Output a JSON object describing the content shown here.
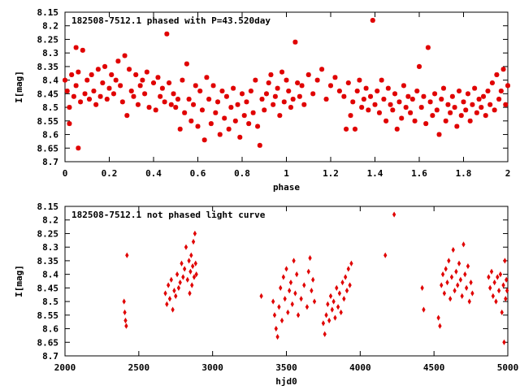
{
  "chart_data": [
    {
      "type": "scatter",
      "title": "182508-7512.1 phased with P=43.520day",
      "xlabel": "phase",
      "ylabel": "I[mag]",
      "xlim": [
        0,
        2
      ],
      "ylim": [
        8.15,
        8.7
      ],
      "y_reversed": true,
      "grid": false,
      "legend": "none",
      "x_ticks": [
        "0",
        "0.2",
        "0.4",
        "0.6",
        "0.8",
        "1",
        "1.2",
        "1.4",
        "1.6",
        "1.8",
        "2"
      ],
      "x_tick_values": [
        0,
        0.2,
        0.4,
        0.6,
        0.8,
        1,
        1.2,
        1.4,
        1.6,
        1.8,
        2
      ],
      "y_ticks": [
        "8.15",
        "8.2",
        "8.25",
        "8.3",
        "8.35",
        "8.4",
        "8.45",
        "8.5",
        "8.55",
        "8.6",
        "8.65",
        "8.7"
      ],
      "y_tick_values": [
        8.15,
        8.2,
        8.25,
        8.3,
        8.35,
        8.4,
        8.45,
        8.5,
        8.55,
        8.6,
        8.65,
        8.7
      ],
      "marker": "star",
      "series_color": "#e00000",
      "points": [
        [
          0.0,
          8.4
        ],
        [
          0.01,
          8.44
        ],
        [
          0.02,
          8.5
        ],
        [
          0.02,
          8.56
        ],
        [
          0.03,
          8.38
        ],
        [
          0.04,
          8.46
        ],
        [
          0.05,
          8.28
        ],
        [
          0.05,
          8.42
        ],
        [
          0.06,
          8.65
        ],
        [
          0.06,
          8.37
        ],
        [
          0.07,
          8.48
        ],
        [
          0.08,
          8.29
        ],
        [
          0.09,
          8.45
        ],
        [
          0.1,
          8.4
        ],
        [
          0.11,
          8.47
        ],
        [
          0.12,
          8.38
        ],
        [
          0.13,
          8.44
        ],
        [
          0.14,
          8.49
        ],
        [
          0.15,
          8.36
        ],
        [
          0.16,
          8.46
        ],
        [
          0.17,
          8.41
        ],
        [
          0.18,
          8.35
        ],
        [
          0.19,
          8.47
        ],
        [
          0.2,
          8.43
        ],
        [
          0.21,
          8.38
        ],
        [
          0.22,
          8.45
        ],
        [
          0.23,
          8.4
        ],
        [
          0.24,
          8.33
        ],
        [
          0.25,
          8.42
        ],
        [
          0.26,
          8.48
        ],
        [
          0.27,
          8.31
        ],
        [
          0.28,
          8.53
        ],
        [
          0.29,
          8.36
        ],
        [
          0.3,
          8.44
        ],
        [
          0.31,
          8.46
        ],
        [
          0.32,
          8.38
        ],
        [
          0.33,
          8.49
        ],
        [
          0.34,
          8.42
        ],
        [
          0.35,
          8.4
        ],
        [
          0.36,
          8.45
        ],
        [
          0.37,
          8.37
        ],
        [
          0.38,
          8.5
        ],
        [
          0.4,
          8.41
        ],
        [
          0.41,
          8.51
        ],
        [
          0.42,
          8.39
        ],
        [
          0.43,
          8.46
        ],
        [
          0.44,
          8.43
        ],
        [
          0.45,
          8.48
        ],
        [
          0.46,
          8.23
        ],
        [
          0.47,
          8.41
        ],
        [
          0.48,
          8.49
        ],
        [
          0.49,
          8.45
        ],
        [
          0.5,
          8.5
        ],
        [
          0.51,
          8.47
        ],
        [
          0.52,
          8.58
        ],
        [
          0.53,
          8.4
        ],
        [
          0.54,
          8.52
        ],
        [
          0.55,
          8.34
        ],
        [
          0.56,
          8.47
        ],
        [
          0.57,
          8.55
        ],
        [
          0.58,
          8.49
        ],
        [
          0.59,
          8.42
        ],
        [
          0.6,
          8.57
        ],
        [
          0.61,
          8.44
        ],
        [
          0.62,
          8.51
        ],
        [
          0.63,
          8.62
        ],
        [
          0.64,
          8.39
        ],
        [
          0.65,
          8.47
        ],
        [
          0.66,
          8.56
        ],
        [
          0.67,
          8.42
        ],
        [
          0.68,
          8.52
        ],
        [
          0.69,
          8.48
        ],
        [
          0.7,
          8.6
        ],
        [
          0.71,
          8.44
        ],
        [
          0.72,
          8.54
        ],
        [
          0.73,
          8.46
        ],
        [
          0.74,
          8.58
        ],
        [
          0.75,
          8.5
        ],
        [
          0.76,
          8.43
        ],
        [
          0.77,
          8.55
        ],
        [
          0.78,
          8.49
        ],
        [
          0.79,
          8.61
        ],
        [
          0.8,
          8.45
        ],
        [
          0.81,
          8.53
        ],
        [
          0.82,
          8.48
        ],
        [
          0.83,
          8.56
        ],
        [
          0.84,
          8.44
        ],
        [
          0.85,
          8.52
        ],
        [
          0.86,
          8.4
        ],
        [
          0.87,
          8.57
        ],
        [
          0.88,
          8.64
        ],
        [
          0.89,
          8.47
        ],
        [
          0.9,
          8.51
        ],
        [
          0.91,
          8.45
        ],
        [
          0.92,
          8.41
        ],
        [
          0.93,
          8.38
        ],
        [
          0.94,
          8.49
        ],
        [
          0.95,
          8.46
        ],
        [
          0.96,
          8.43
        ],
        [
          0.97,
          8.53
        ],
        [
          0.98,
          8.37
        ],
        [
          0.99,
          8.48
        ],
        [
          1.0,
          8.4
        ],
        [
          1.01,
          8.44
        ],
        [
          1.02,
          8.5
        ],
        [
          1.03,
          8.47
        ],
        [
          1.04,
          8.26
        ],
        [
          1.05,
          8.41
        ],
        [
          1.06,
          8.46
        ],
        [
          1.07,
          8.42
        ],
        [
          1.08,
          8.49
        ],
        [
          1.1,
          8.38
        ],
        [
          1.12,
          8.45
        ],
        [
          1.14,
          8.4
        ],
        [
          1.16,
          8.36
        ],
        [
          1.18,
          8.47
        ],
        [
          1.2,
          8.42
        ],
        [
          1.22,
          8.39
        ],
        [
          1.24,
          8.44
        ],
        [
          1.26,
          8.46
        ],
        [
          1.27,
          8.58
        ],
        [
          1.28,
          8.41
        ],
        [
          1.29,
          8.53
        ],
        [
          1.3,
          8.48
        ],
        [
          1.31,
          8.58
        ],
        [
          1.32,
          8.44
        ],
        [
          1.33,
          8.4
        ],
        [
          1.34,
          8.5
        ],
        [
          1.35,
          8.47
        ],
        [
          1.36,
          8.43
        ],
        [
          1.37,
          8.51
        ],
        [
          1.38,
          8.46
        ],
        [
          1.39,
          8.18
        ],
        [
          1.4,
          8.49
        ],
        [
          1.41,
          8.44
        ],
        [
          1.42,
          8.52
        ],
        [
          1.43,
          8.4
        ],
        [
          1.44,
          8.47
        ],
        [
          1.45,
          8.55
        ],
        [
          1.46,
          8.43
        ],
        [
          1.47,
          8.49
        ],
        [
          1.48,
          8.51
        ],
        [
          1.49,
          8.45
        ],
        [
          1.5,
          8.58
        ],
        [
          1.51,
          8.48
        ],
        [
          1.52,
          8.54
        ],
        [
          1.53,
          8.42
        ],
        [
          1.54,
          8.5
        ],
        [
          1.55,
          8.46
        ],
        [
          1.56,
          8.52
        ],
        [
          1.57,
          8.47
        ],
        [
          1.58,
          8.55
        ],
        [
          1.59,
          8.44
        ],
        [
          1.6,
          8.35
        ],
        [
          1.61,
          8.5
        ],
        [
          1.62,
          8.46
        ],
        [
          1.63,
          8.56
        ],
        [
          1.64,
          8.28
        ],
        [
          1.65,
          8.48
        ],
        [
          1.66,
          8.53
        ],
        [
          1.67,
          8.45
        ],
        [
          1.68,
          8.51
        ],
        [
          1.69,
          8.6
        ],
        [
          1.7,
          8.47
        ],
        [
          1.71,
          8.43
        ],
        [
          1.72,
          8.55
        ],
        [
          1.73,
          8.49
        ],
        [
          1.74,
          8.52
        ],
        [
          1.75,
          8.46
        ],
        [
          1.76,
          8.5
        ],
        [
          1.77,
          8.57
        ],
        [
          1.78,
          8.44
        ],
        [
          1.79,
          8.53
        ],
        [
          1.8,
          8.48
        ],
        [
          1.81,
          8.51
        ],
        [
          1.82,
          8.45
        ],
        [
          1.83,
          8.55
        ],
        [
          1.84,
          8.49
        ],
        [
          1.85,
          8.43
        ],
        [
          1.86,
          8.52
        ],
        [
          1.87,
          8.47
        ],
        [
          1.88,
          8.5
        ],
        [
          1.89,
          8.46
        ],
        [
          1.9,
          8.53
        ],
        [
          1.91,
          8.44
        ],
        [
          1.92,
          8.49
        ],
        [
          1.93,
          8.41
        ],
        [
          1.94,
          8.51
        ],
        [
          1.95,
          8.38
        ],
        [
          1.96,
          8.47
        ],
        [
          1.97,
          8.44
        ],
        [
          1.98,
          8.36
        ],
        [
          1.99,
          8.49
        ],
        [
          2.0,
          8.42
        ]
      ]
    },
    {
      "type": "scatter",
      "title": "182508-7512.1 not phased light curve",
      "xlabel": "hjd0",
      "ylabel": "I[mag]",
      "xlim": [
        2000,
        5000
      ],
      "ylim": [
        8.15,
        8.7
      ],
      "y_reversed": true,
      "grid": false,
      "legend": "none",
      "x_ticks": [
        "2000",
        "2500",
        "3000",
        "3500",
        "4000",
        "4500",
        "5000"
      ],
      "x_tick_values": [
        2000,
        2500,
        3000,
        3500,
        4000,
        4500,
        5000
      ],
      "y_ticks": [
        "8.15",
        "8.2",
        "8.25",
        "8.3",
        "8.35",
        "8.4",
        "8.45",
        "8.5",
        "8.55",
        "8.6",
        "8.65",
        "8.7"
      ],
      "y_tick_values": [
        8.15,
        8.2,
        8.25,
        8.3,
        8.35,
        8.4,
        8.45,
        8.5,
        8.55,
        8.6,
        8.65,
        8.7
      ],
      "marker": "diamond",
      "series_color": "#e00000",
      "points": [
        [
          2400,
          8.5
        ],
        [
          2405,
          8.54
        ],
        [
          2410,
          8.57
        ],
        [
          2415,
          8.59
        ],
        [
          2420,
          8.33
        ],
        [
          2680,
          8.47
        ],
        [
          2690,
          8.51
        ],
        [
          2700,
          8.44
        ],
        [
          2710,
          8.49
        ],
        [
          2720,
          8.42
        ],
        [
          2730,
          8.53
        ],
        [
          2740,
          8.46
        ],
        [
          2750,
          8.48
        ],
        [
          2760,
          8.4
        ],
        [
          2770,
          8.45
        ],
        [
          2780,
          8.43
        ],
        [
          2790,
          8.36
        ],
        [
          2800,
          8.41
        ],
        [
          2810,
          8.38
        ],
        [
          2820,
          8.3
        ],
        [
          2830,
          8.42
        ],
        [
          2840,
          8.35
        ],
        [
          2845,
          8.47
        ],
        [
          2850,
          8.39
        ],
        [
          2855,
          8.33
        ],
        [
          2860,
          8.44
        ],
        [
          2865,
          8.37
        ],
        [
          2870,
          8.28
        ],
        [
          2875,
          8.41
        ],
        [
          2880,
          8.25
        ],
        [
          2885,
          8.36
        ],
        [
          2890,
          8.4
        ],
        [
          3330,
          8.48
        ],
        [
          3410,
          8.5
        ],
        [
          3420,
          8.55
        ],
        [
          3430,
          8.6
        ],
        [
          3440,
          8.63
        ],
        [
          3450,
          8.52
        ],
        [
          3460,
          8.45
        ],
        [
          3470,
          8.57
        ],
        [
          3480,
          8.41
        ],
        [
          3490,
          8.49
        ],
        [
          3500,
          8.38
        ],
        [
          3510,
          8.54
        ],
        [
          3520,
          8.46
        ],
        [
          3530,
          8.43
        ],
        [
          3540,
          8.51
        ],
        [
          3550,
          8.35
        ],
        [
          3560,
          8.47
        ],
        [
          3570,
          8.4
        ],
        [
          3580,
          8.55
        ],
        [
          3600,
          8.49
        ],
        [
          3620,
          8.44
        ],
        [
          3640,
          8.52
        ],
        [
          3650,
          8.39
        ],
        [
          3660,
          8.34
        ],
        [
          3670,
          8.46
        ],
        [
          3680,
          8.42
        ],
        [
          3690,
          8.5
        ],
        [
          3750,
          8.58
        ],
        [
          3760,
          8.62
        ],
        [
          3770,
          8.55
        ],
        [
          3780,
          8.51
        ],
        [
          3790,
          8.57
        ],
        [
          3800,
          8.48
        ],
        [
          3810,
          8.53
        ],
        [
          3820,
          8.5
        ],
        [
          3830,
          8.56
        ],
        [
          3840,
          8.45
        ],
        [
          3850,
          8.52
        ],
        [
          3860,
          8.47
        ],
        [
          3870,
          8.54
        ],
        [
          3880,
          8.43
        ],
        [
          3890,
          8.49
        ],
        [
          3900,
          8.41
        ],
        [
          3910,
          8.46
        ],
        [
          3920,
          8.38
        ],
        [
          3930,
          8.44
        ],
        [
          3940,
          8.36
        ],
        [
          4170,
          8.33
        ],
        [
          4230,
          8.18
        ],
        [
          4420,
          8.45
        ],
        [
          4430,
          8.53
        ],
        [
          4530,
          8.56
        ],
        [
          4540,
          8.59
        ],
        [
          4550,
          8.44
        ],
        [
          4560,
          8.4
        ],
        [
          4570,
          8.47
        ],
        [
          4580,
          8.38
        ],
        [
          4590,
          8.43
        ],
        [
          4600,
          8.35
        ],
        [
          4610,
          8.49
        ],
        [
          4620,
          8.41
        ],
        [
          4630,
          8.31
        ],
        [
          4640,
          8.46
        ],
        [
          4650,
          8.39
        ],
        [
          4660,
          8.44
        ],
        [
          4670,
          8.36
        ],
        [
          4680,
          8.42
        ],
        [
          4690,
          8.48
        ],
        [
          4700,
          8.29
        ],
        [
          4710,
          8.4
        ],
        [
          4720,
          8.45
        ],
        [
          4730,
          8.37
        ],
        [
          4740,
          8.5
        ],
        [
          4750,
          8.43
        ],
        [
          4760,
          8.47
        ],
        [
          4870,
          8.41
        ],
        [
          4880,
          8.45
        ],
        [
          4890,
          8.39
        ],
        [
          4900,
          8.48
        ],
        [
          4910,
          8.43
        ],
        [
          4920,
          8.5
        ],
        [
          4930,
          8.41
        ],
        [
          4940,
          8.46
        ],
        [
          4950,
          8.4
        ],
        [
          4960,
          8.54
        ],
        [
          4970,
          8.44
        ],
        [
          4975,
          8.65
        ],
        [
          4980,
          8.35
        ],
        [
          4985,
          8.49
        ],
        [
          4990,
          8.42
        ],
        [
          4995,
          8.46
        ]
      ]
    }
  ]
}
